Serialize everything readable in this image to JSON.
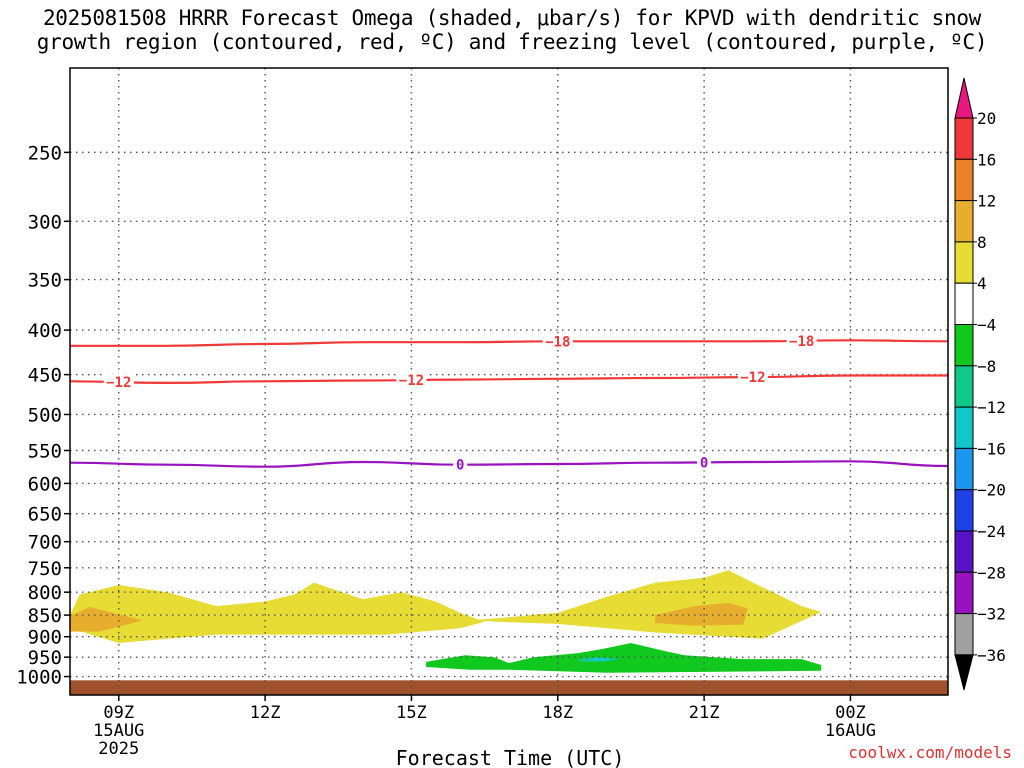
{
  "title_lines": [
    "2025081508 HRRR Forecast Omega (shaded, μbar/s) for KPVD with dendritic snow",
    "growth region (contoured, red, ºC) and freezing level (contoured, purple, ºC)"
  ],
  "watermark": "coolwx.com/models",
  "chart_data": {
    "type": "time-height cross section",
    "station": "KPVD",
    "run": "2025081508",
    "model": "HRRR",
    "xlabel": "Forecast Time (UTC)",
    "x_ticks": [
      {
        "label": "09Z",
        "sub1": "15AUG",
        "sub2": "2025",
        "hour": 9
      },
      {
        "label": "12Z",
        "sub1": "",
        "sub2": "",
        "hour": 12
      },
      {
        "label": "15Z",
        "sub1": "",
        "sub2": "",
        "hour": 15
      },
      {
        "label": "18Z",
        "sub1": "",
        "sub2": "",
        "hour": 18
      },
      {
        "label": "21Z",
        "sub1": "",
        "sub2": "",
        "hour": 21
      },
      {
        "label": "00Z",
        "sub1": "16AUG",
        "sub2": "",
        "hour": 24
      }
    ],
    "xlim_hours": [
      8,
      26
    ],
    "y_axis": "pressure (hPa), log scale, reversed",
    "ylim_hpa": [
      1050,
      200
    ],
    "y_ticks": [
      250,
      300,
      350,
      400,
      450,
      500,
      550,
      600,
      650,
      700,
      750,
      800,
      850,
      900,
      950,
      1000
    ],
    "grid": true,
    "colorbar": {
      "units": "μbar/s",
      "labels": [
        "20",
        "16",
        "12",
        "8",
        "4",
        "−4",
        "−8",
        "−12",
        "−16",
        "−20",
        "−24",
        "−28",
        "−32",
        "−36"
      ],
      "colors_top_to_bottom": [
        "#e8177e",
        "#f03838",
        "#ec8226",
        "#e6ae2c",
        "#e6dc34",
        "#ffffff",
        "#10c81e",
        "#10c888",
        "#10c8c8",
        "#1a96ee",
        "#2040e8",
        "#5a12c8",
        "#9a12c0",
        "#a0a0a0",
        "#000000"
      ]
    },
    "contours": [
      {
        "name": "-18",
        "color": "#f03838",
        "label": "−18",
        "points": [
          [
            8,
            417
          ],
          [
            10,
            417
          ],
          [
            12,
            415
          ],
          [
            14,
            413
          ],
          [
            16,
            413
          ],
          [
            18,
            412
          ],
          [
            20,
            412
          ],
          [
            22,
            412
          ],
          [
            24,
            411
          ],
          [
            26,
            412
          ]
        ],
        "label_hours": [
          18.0,
          23.0
        ]
      },
      {
        "name": "-12",
        "color": "#f03838",
        "label": "−12",
        "points": [
          [
            8,
            458
          ],
          [
            10,
            460
          ],
          [
            12,
            458
          ],
          [
            14,
            457
          ],
          [
            16,
            456
          ],
          [
            18,
            455
          ],
          [
            20,
            454
          ],
          [
            22,
            453
          ],
          [
            24,
            451
          ],
          [
            26,
            451
          ]
        ],
        "label_hours": [
          9.0,
          15.0,
          22.0
        ]
      },
      {
        "name": "0",
        "color": "#9a12c0",
        "label": "0",
        "points": [
          [
            8,
            568
          ],
          [
            10,
            571
          ],
          [
            12,
            574
          ],
          [
            14,
            567
          ],
          [
            16,
            571
          ],
          [
            18,
            570
          ],
          [
            20,
            568
          ],
          [
            22,
            567
          ],
          [
            24,
            566
          ],
          [
            26,
            573
          ]
        ],
        "label_hours": [
          16.0,
          21.0
        ]
      }
    ],
    "shaded_regions": [
      {
        "range": "4 to 8",
        "color": "#e6dc34",
        "points": [
          [
            8.0,
            850
          ],
          [
            8.2,
            805
          ],
          [
            9.0,
            785
          ],
          [
            10.0,
            800
          ],
          [
            11.0,
            830
          ],
          [
            12.0,
            820
          ],
          [
            12.6,
            805
          ],
          [
            13.0,
            780
          ],
          [
            14.0,
            815
          ],
          [
            14.8,
            800
          ],
          [
            15.5,
            820
          ],
          [
            16.0,
            845
          ],
          [
            16.5,
            865
          ],
          [
            16.0,
            880
          ],
          [
            14.5,
            895
          ],
          [
            13.0,
            895
          ],
          [
            11.0,
            895
          ],
          [
            9.0,
            915
          ],
          [
            8.0,
            880
          ]
        ]
      },
      {
        "range": "4 to 8",
        "color": "#e6dc34",
        "points": [
          [
            16.2,
            862
          ],
          [
            17.0,
            855
          ],
          [
            17.6,
            848
          ],
          [
            18.0,
            845
          ],
          [
            19.0,
            810
          ],
          [
            20.0,
            780
          ],
          [
            21.0,
            770
          ],
          [
            21.5,
            755
          ],
          [
            22.0,
            780
          ],
          [
            23.0,
            830
          ],
          [
            23.4,
            843
          ],
          [
            22.2,
            905
          ],
          [
            20.0,
            890
          ],
          [
            18.0,
            870
          ],
          [
            17.0,
            866
          ]
        ]
      },
      {
        "range": "8 to 12",
        "color": "#e6ae2c",
        "points": [
          [
            8.0,
            852
          ],
          [
            8.4,
            832
          ],
          [
            9.5,
            862
          ],
          [
            8.6,
            888
          ],
          [
            8.0,
            888
          ]
        ]
      },
      {
        "range": "8 to 12",
        "color": "#e6ae2c",
        "points": [
          [
            20.0,
            850
          ],
          [
            20.8,
            830
          ],
          [
            21.5,
            823
          ],
          [
            21.9,
            835
          ],
          [
            21.8,
            872
          ],
          [
            20.8,
            874
          ],
          [
            20.0,
            868
          ]
        ]
      },
      {
        "range": "-4 to -8",
        "color": "#10c81e",
        "points": [
          [
            15.3,
            962
          ],
          [
            16.1,
            945
          ],
          [
            16.7,
            950
          ],
          [
            17.0,
            965
          ],
          [
            17.5,
            950
          ],
          [
            18.4,
            940
          ],
          [
            18.9,
            930
          ],
          [
            19.5,
            915
          ],
          [
            20.2,
            935
          ],
          [
            20.6,
            945
          ],
          [
            21.8,
            955
          ],
          [
            23.0,
            955
          ],
          [
            23.4,
            970
          ],
          [
            23.4,
            985
          ],
          [
            19.0,
            990
          ],
          [
            17.0,
            982
          ],
          [
            16.2,
            982
          ],
          [
            15.3,
            975
          ]
        ]
      },
      {
        "range": "-8 to -12",
        "color": "#10c888",
        "points": [
          [
            18.4,
            955
          ],
          [
            18.8,
            950
          ],
          [
            19.3,
            955
          ],
          [
            18.9,
            962
          ],
          [
            18.5,
            962
          ]
        ]
      },
      {
        "range": "-12 to -16",
        "color": "#10c8c8",
        "points": [
          [
            18.6,
            955
          ],
          [
            18.9,
            951
          ],
          [
            19.2,
            956
          ],
          [
            18.9,
            960
          ]
        ]
      }
    ],
    "terrain": {
      "color": "#a0522d",
      "surface_hpa": 1010
    }
  }
}
